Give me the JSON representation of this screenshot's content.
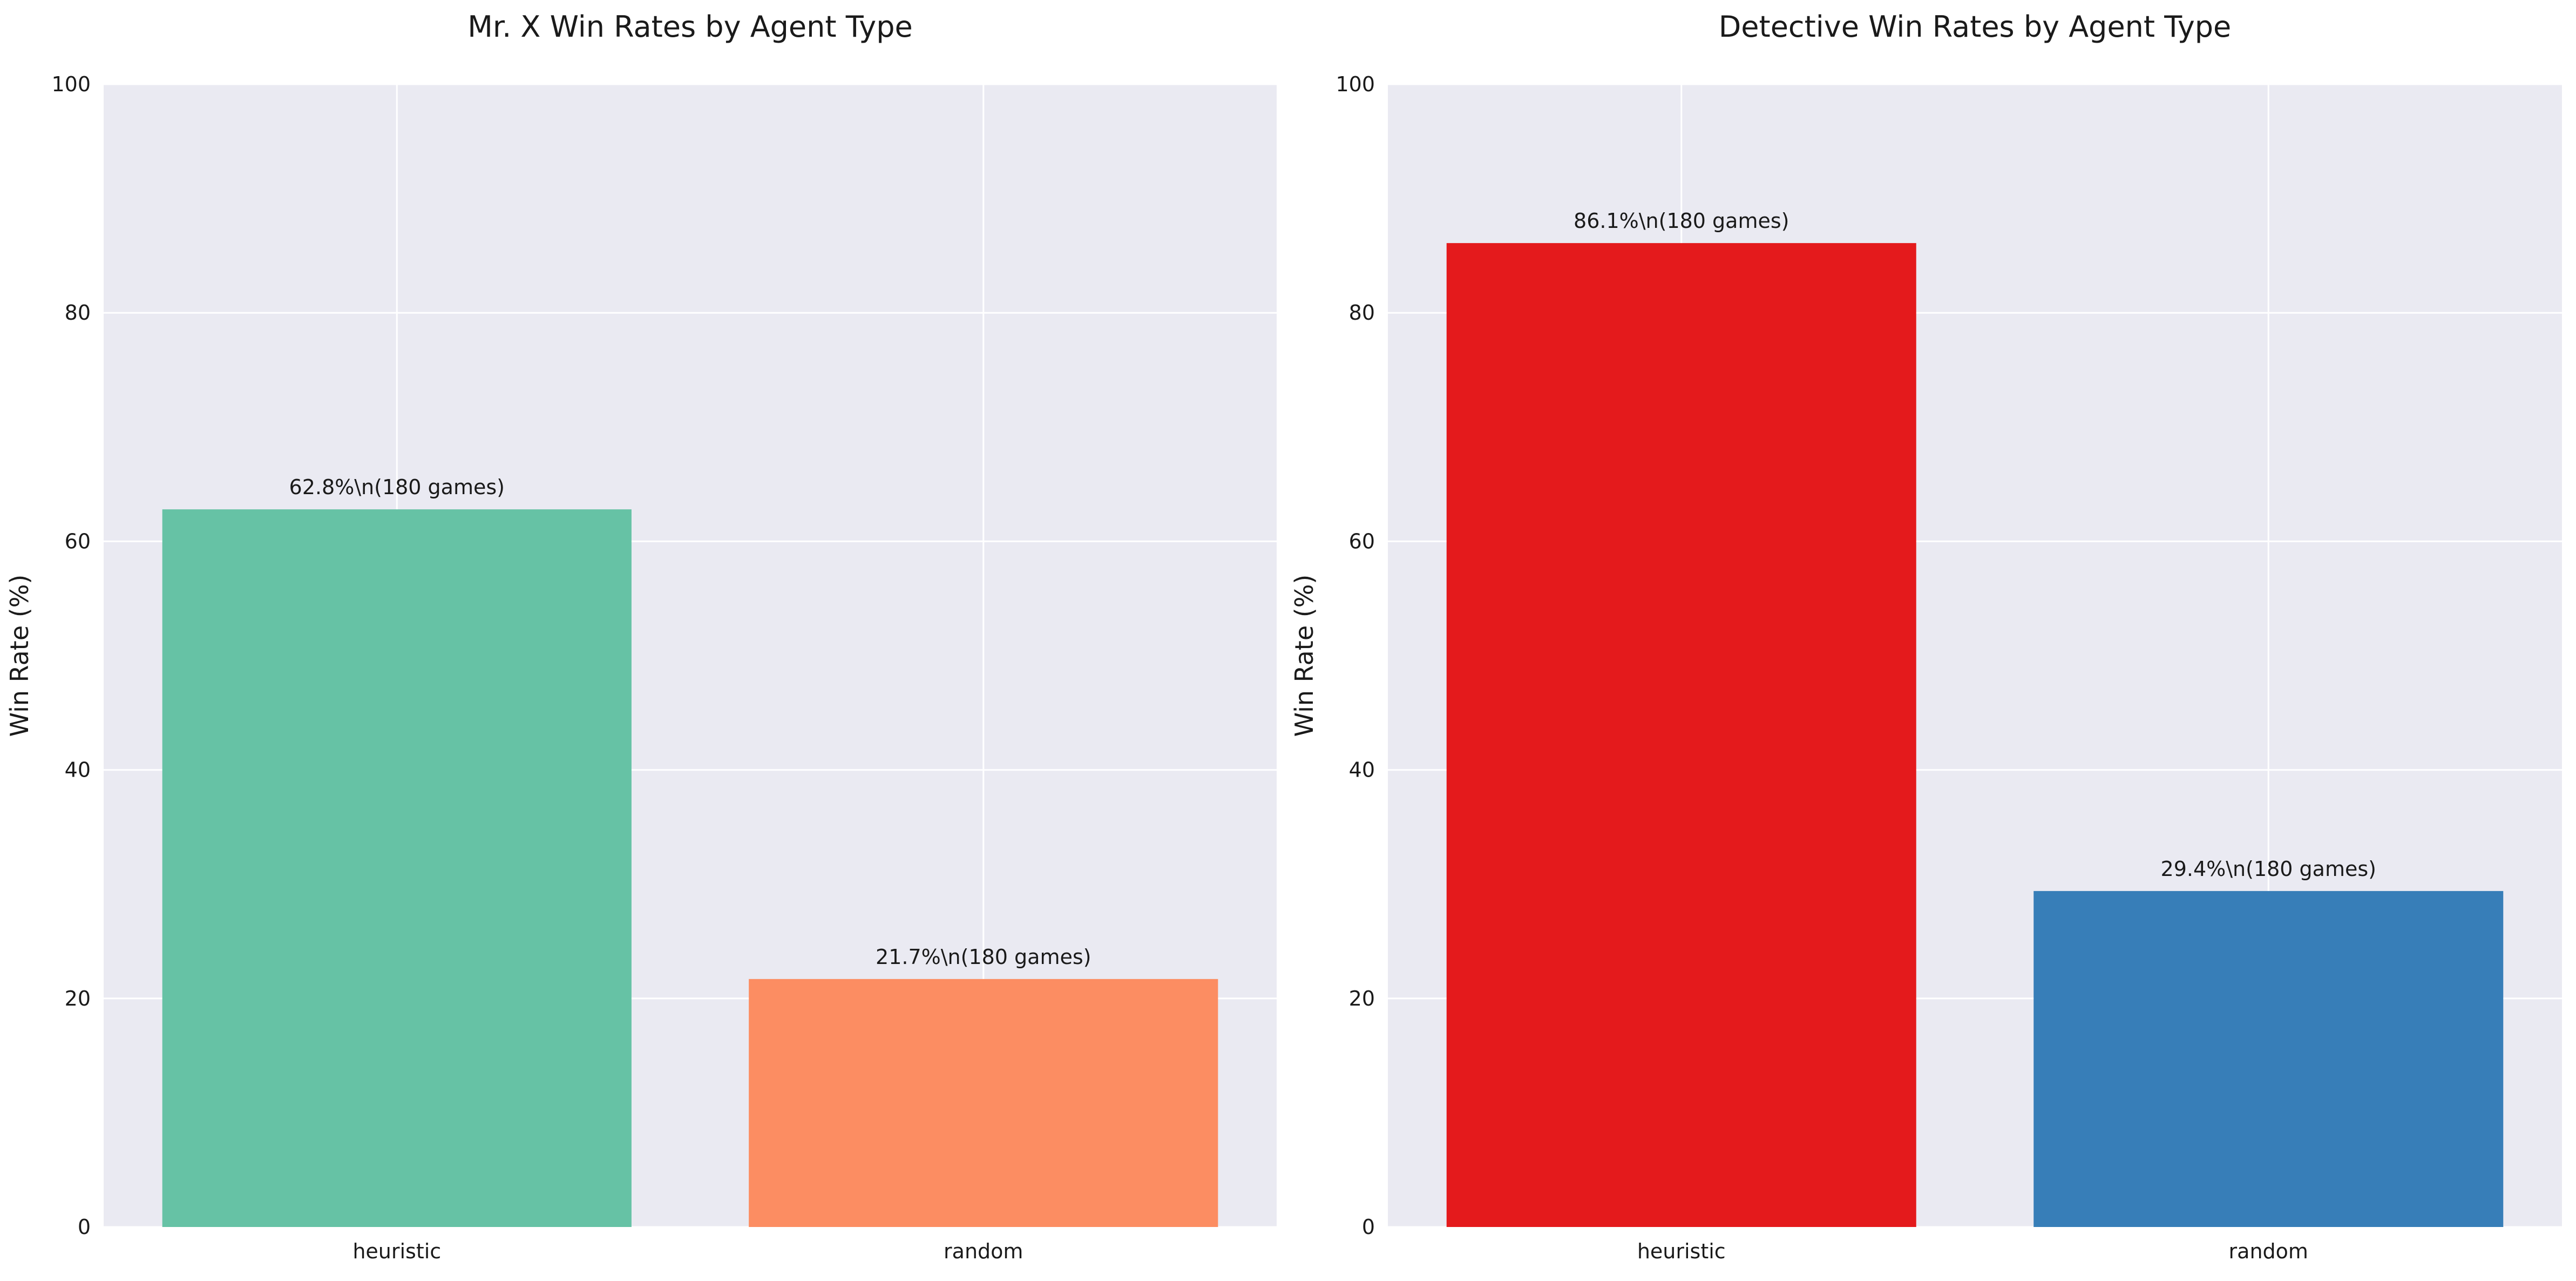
{
  "chart_data": [
    {
      "type": "bar",
      "title": "Mr. X Win Rates by Agent Type",
      "xlabel": "",
      "ylabel": "Win Rate (%)",
      "ylim": [
        0,
        100
      ],
      "yticks": [
        0,
        20,
        40,
        60,
        80,
        100
      ],
      "grid": true,
      "categories": [
        "heuristic",
        "random"
      ],
      "values": [
        62.8,
        21.7
      ],
      "bar_labels": [
        "62.8%\\n(180 games)",
        "21.7%\\n(180 games)"
      ],
      "colors": [
        "#66c2a5",
        "#fc8d62"
      ]
    },
    {
      "type": "bar",
      "title": "Detective Win Rates by Agent Type",
      "xlabel": "",
      "ylabel": "Win Rate (%)",
      "ylim": [
        0,
        100
      ],
      "yticks": [
        0,
        20,
        40,
        60,
        80,
        100
      ],
      "grid": true,
      "categories": [
        "heuristic",
        "random"
      ],
      "values": [
        86.1,
        29.4
      ],
      "bar_labels": [
        "86.1%\\n(180 games)",
        "29.4%\\n(180 games)"
      ],
      "colors": [
        "#e41a1c",
        "#377eb8"
      ]
    }
  ],
  "style": {
    "plot_background": "#eaeaf2",
    "grid_color": "#ffffff"
  }
}
